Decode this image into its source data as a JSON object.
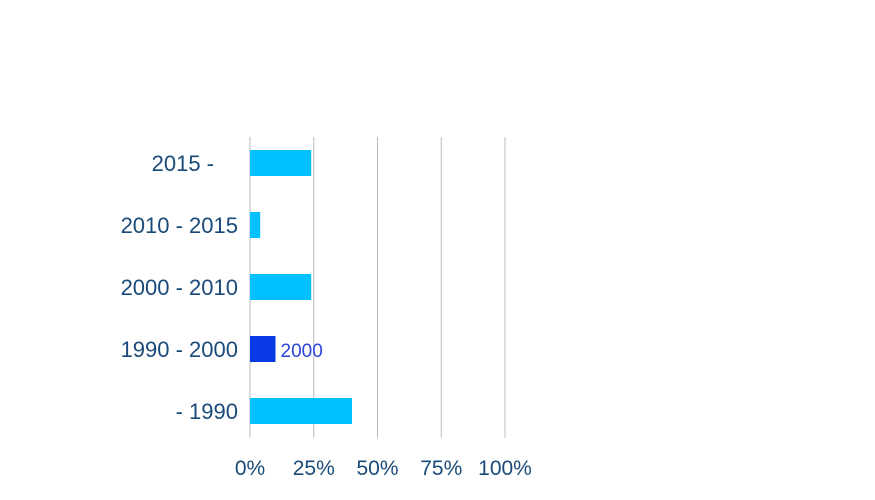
{
  "chart_data": {
    "type": "bar",
    "orientation": "horizontal",
    "categories": [
      "2015 -",
      "2010 - 2015",
      "2000 - 2010",
      "1990 - 2000",
      "- 1990"
    ],
    "values": [
      24,
      4,
      24,
      10,
      40
    ],
    "highlighted_category": "1990 - 2000",
    "data_labels": [
      "",
      "",
      "",
      "2000",
      ""
    ],
    "x_ticks": [
      "0%",
      "25%",
      "50%",
      "75%",
      "100%"
    ],
    "xlim": [
      0,
      100
    ],
    "grid": true,
    "legend": "none",
    "colors": {
      "bar": "#00c0ff",
      "highlight": "#0a3ae6",
      "label_text": "#1a4a7a",
      "data_label_text": "#2a44d8",
      "gridline": "#bbbbbb"
    }
  }
}
